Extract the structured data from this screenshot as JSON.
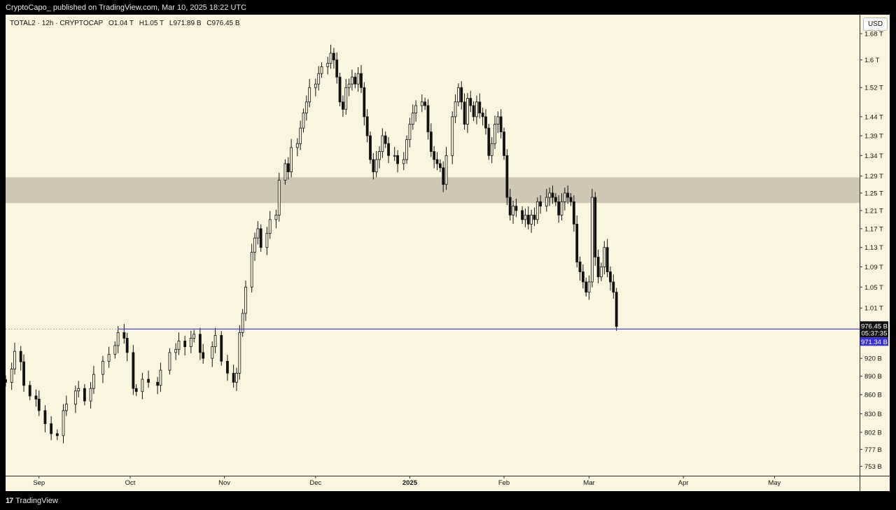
{
  "header": {
    "publish_line": "CryptoCapo_ published on TradingView.com, Mar 10, 2025 18:22 UTC"
  },
  "legend": {
    "symbol": "TOTAL2 · 12h · CRYPTOCAP",
    "open": "O1.04 T",
    "high": "H1.05 T",
    "low": "L971.89 B",
    "close": "C976.45 B"
  },
  "currency_button": "USD",
  "footer": {
    "brand": "TradingView",
    "logo_glyph": "17"
  },
  "price_tags": {
    "last_price": "976.45 B",
    "countdown": "05:37:35",
    "line_price": "971.34 B"
  },
  "colors": {
    "background": "#faf5de",
    "zone": "#cfc6b4",
    "support_line": "#3a2fd0",
    "candles": "#111111",
    "last_tag": "#111111",
    "line_tag": "#3a2fd0"
  },
  "chart_data": {
    "type": "candlestick",
    "symbol": "TOTAL2",
    "interval": "12h",
    "y_scale": "log",
    "y_unit": "USD",
    "y_range": [
      740000000000,
      1740000000000
    ],
    "x_range": [
      "2024-08-21",
      "2025-05-29"
    ],
    "y_ticks": [
      {
        "v": 1680000000000,
        "label": "1.68 T"
      },
      {
        "v": 1600000000000,
        "label": "1.6 T"
      },
      {
        "v": 1520000000000,
        "label": "1.52 T"
      },
      {
        "v": 1440000000000,
        "label": "1.44 T"
      },
      {
        "v": 1390000000000,
        "label": "1.39 T"
      },
      {
        "v": 1340000000000,
        "label": "1.34 T"
      },
      {
        "v": 1290000000000,
        "label": "1.29 T"
      },
      {
        "v": 1250000000000,
        "label": "1.25 T"
      },
      {
        "v": 1210000000000,
        "label": "1.21 T"
      },
      {
        "v": 1170000000000,
        "label": "1.17 T"
      },
      {
        "v": 1130000000000,
        "label": "1.13 T"
      },
      {
        "v": 1090000000000,
        "label": "1.09 T"
      },
      {
        "v": 1050000000000,
        "label": "1.05 T"
      },
      {
        "v": 1010000000000,
        "label": "1.01 T"
      },
      {
        "v": 920000000000,
        "label": "920 B"
      },
      {
        "v": 890000000000,
        "label": "890 B"
      },
      {
        "v": 860000000000,
        "label": "860 B"
      },
      {
        "v": 830000000000,
        "label": "830 B"
      },
      {
        "v": 802000000000,
        "label": "802 B"
      },
      {
        "v": 777000000000,
        "label": "777 B"
      },
      {
        "v": 753000000000,
        "label": "753 B"
      }
    ],
    "x_ticks": [
      {
        "date": "2024-09-01",
        "label": "Sep",
        "bold": false
      },
      {
        "date": "2024-10-01",
        "label": "Oct",
        "bold": false
      },
      {
        "date": "2024-11-01",
        "label": "Nov",
        "bold": false
      },
      {
        "date": "2024-12-01",
        "label": "Dec",
        "bold": false
      },
      {
        "date": "2025-01-01",
        "label": "2025",
        "bold": true
      },
      {
        "date": "2025-02-01",
        "label": "Feb",
        "bold": false
      },
      {
        "date": "2025-03-01",
        "label": "Mar",
        "bold": false
      },
      {
        "date": "2025-04-01",
        "label": "Apr",
        "bold": false
      },
      {
        "date": "2025-05-01",
        "label": "May",
        "bold": false
      }
    ],
    "resistance_zone": {
      "low": 1227000000000,
      "high": 1287000000000
    },
    "support_line": {
      "value": 971340000000,
      "start": "2024-09-27"
    },
    "last_close": 976450000000,
    "closes": [
      [
        "2024-08-21",
        880
      ],
      [
        "2024-08-23",
        902
      ],
      [
        "2024-08-24",
        932
      ],
      [
        "2024-08-26",
        914
      ],
      [
        "2024-08-27",
        875
      ],
      [
        "2024-08-29",
        858
      ],
      [
        "2024-08-31",
        853
      ],
      [
        "2024-09-01",
        835
      ],
      [
        "2024-09-03",
        815
      ],
      [
        "2024-09-05",
        800
      ],
      [
        "2024-09-07",
        797
      ],
      [
        "2024-09-09",
        835
      ],
      [
        "2024-09-10",
        845
      ],
      [
        "2024-09-13",
        866
      ],
      [
        "2024-09-14",
        870
      ],
      [
        "2024-09-16",
        850
      ],
      [
        "2024-09-18",
        870
      ],
      [
        "2024-09-19",
        893
      ],
      [
        "2024-09-22",
        915
      ],
      [
        "2024-09-24",
        927
      ],
      [
        "2024-09-26",
        942
      ],
      [
        "2024-09-27",
        965
      ],
      [
        "2024-09-29",
        955
      ],
      [
        "2024-09-30",
        930
      ],
      [
        "2024-10-02",
        870
      ],
      [
        "2024-10-03",
        865
      ],
      [
        "2024-10-05",
        885
      ],
      [
        "2024-10-07",
        880
      ],
      [
        "2024-10-10",
        875
      ],
      [
        "2024-10-11",
        900
      ],
      [
        "2024-10-14",
        930
      ],
      [
        "2024-10-16",
        935
      ],
      [
        "2024-10-17",
        950
      ],
      [
        "2024-10-19",
        940
      ],
      [
        "2024-10-21",
        955
      ],
      [
        "2024-10-22",
        962
      ],
      [
        "2024-10-24",
        930
      ],
      [
        "2024-10-25",
        920
      ],
      [
        "2024-10-28",
        940
      ],
      [
        "2024-10-29",
        960
      ],
      [
        "2024-10-31",
        915
      ],
      [
        "2024-11-02",
        895
      ],
      [
        "2024-11-04",
        880
      ],
      [
        "2024-11-05",
        895
      ],
      [
        "2024-11-06",
        965
      ],
      [
        "2024-11-07",
        1000
      ],
      [
        "2024-11-08",
        1050
      ],
      [
        "2024-11-10",
        1120
      ],
      [
        "2024-11-11",
        1150
      ],
      [
        "2024-11-12",
        1170
      ],
      [
        "2024-11-13",
        1130
      ],
      [
        "2024-11-15",
        1160
      ],
      [
        "2024-11-16",
        1190
      ],
      [
        "2024-11-18",
        1200
      ],
      [
        "2024-11-19",
        1280
      ],
      [
        "2024-11-21",
        1320
      ],
      [
        "2024-11-22",
        1300
      ],
      [
        "2024-11-23",
        1360
      ],
      [
        "2024-11-25",
        1370
      ],
      [
        "2024-11-26",
        1410
      ],
      [
        "2024-11-27",
        1450
      ],
      [
        "2024-11-28",
        1480
      ],
      [
        "2024-11-29",
        1520
      ],
      [
        "2024-12-01",
        1530
      ],
      [
        "2024-12-02",
        1560
      ],
      [
        "2024-12-03",
        1580
      ],
      [
        "2024-12-05",
        1590
      ],
      [
        "2024-12-06",
        1620
      ],
      [
        "2024-12-07",
        1600
      ],
      [
        "2024-12-08",
        1550
      ],
      [
        "2024-12-09",
        1480
      ],
      [
        "2024-12-10",
        1460
      ],
      [
        "2024-12-11",
        1520
      ],
      [
        "2024-12-12",
        1530
      ],
      [
        "2024-12-13",
        1550
      ],
      [
        "2024-12-14",
        1530
      ],
      [
        "2024-12-15",
        1560
      ],
      [
        "2024-12-16",
        1520
      ],
      [
        "2024-12-17",
        1440
      ],
      [
        "2024-12-18",
        1390
      ],
      [
        "2024-12-19",
        1330
      ],
      [
        "2024-12-20",
        1300
      ],
      [
        "2024-12-21",
        1330
      ],
      [
        "2024-12-22",
        1350
      ],
      [
        "2024-12-23",
        1390
      ],
      [
        "2024-12-24",
        1370
      ],
      [
        "2024-12-25",
        1340
      ],
      [
        "2024-12-27",
        1340
      ],
      [
        "2024-12-28",
        1320
      ],
      [
        "2024-12-30",
        1330
      ],
      [
        "2024-12-31",
        1380
      ],
      [
        "2025-01-01",
        1420
      ],
      [
        "2025-01-02",
        1450
      ],
      [
        "2025-01-03",
        1470
      ],
      [
        "2025-01-05",
        1480
      ],
      [
        "2025-01-06",
        1470
      ],
      [
        "2025-01-07",
        1400
      ],
      [
        "2025-01-08",
        1350
      ],
      [
        "2025-01-09",
        1330
      ],
      [
        "2025-01-10",
        1320
      ],
      [
        "2025-01-11",
        1310
      ],
      [
        "2025-01-12",
        1270
      ],
      [
        "2025-01-13",
        1340
      ],
      [
        "2025-01-15",
        1440
      ],
      [
        "2025-01-16",
        1480
      ],
      [
        "2025-01-17",
        1520
      ],
      [
        "2025-01-18",
        1480
      ],
      [
        "2025-01-19",
        1420
      ],
      [
        "2025-01-20",
        1490
      ],
      [
        "2025-01-21",
        1470
      ],
      [
        "2025-01-22",
        1440
      ],
      [
        "2025-01-23",
        1480
      ],
      [
        "2025-01-24",
        1450
      ],
      [
        "2025-01-25",
        1440
      ],
      [
        "2025-01-26",
        1410
      ],
      [
        "2025-01-27",
        1340
      ],
      [
        "2025-01-28",
        1370
      ],
      [
        "2025-01-29",
        1420
      ],
      [
        "2025-01-30",
        1440
      ],
      [
        "2025-01-31",
        1400
      ],
      [
        "2025-02-01",
        1340
      ],
      [
        "2025-02-02",
        1240
      ],
      [
        "2025-02-03",
        1200
      ],
      [
        "2025-02-04",
        1220
      ],
      [
        "2025-02-05",
        1210
      ],
      [
        "2025-02-07",
        1190
      ],
      [
        "2025-02-08",
        1200
      ],
      [
        "2025-02-09",
        1180
      ],
      [
        "2025-02-10",
        1200
      ],
      [
        "2025-02-11",
        1190
      ],
      [
        "2025-02-12",
        1230
      ],
      [
        "2025-02-13",
        1220
      ],
      [
        "2025-02-15",
        1240
      ],
      [
        "2025-02-16",
        1250
      ],
      [
        "2025-02-17",
        1240
      ],
      [
        "2025-02-18",
        1230
      ],
      [
        "2025-02-19",
        1200
      ],
      [
        "2025-02-20",
        1230
      ],
      [
        "2025-02-21",
        1250
      ],
      [
        "2025-02-22",
        1240
      ],
      [
        "2025-02-23",
        1230
      ],
      [
        "2025-02-24",
        1180
      ],
      [
        "2025-02-25",
        1100
      ],
      [
        "2025-02-26",
        1080
      ],
      [
        "2025-02-27",
        1060
      ],
      [
        "2025-02-28",
        1040
      ],
      [
        "2025-03-01",
        1060
      ],
      [
        "2025-03-02",
        1240
      ],
      [
        "2025-03-03",
        1110
      ],
      [
        "2025-03-04",
        1070
      ],
      [
        "2025-03-05",
        1090
      ],
      [
        "2025-03-06",
        1130
      ],
      [
        "2025-03-07",
        1080
      ],
      [
        "2025-03-08",
        1060
      ],
      [
        "2025-03-09",
        1040
      ],
      [
        "2025-03-10",
        976
      ]
    ]
  }
}
